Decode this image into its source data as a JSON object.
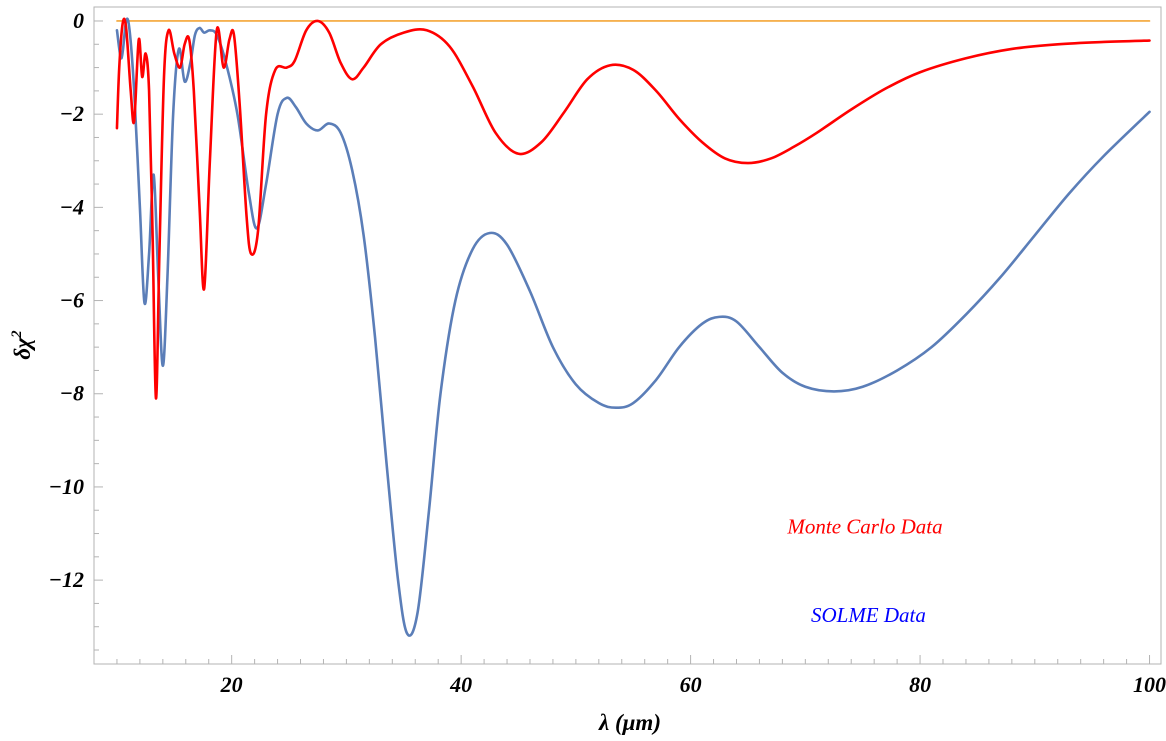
{
  "chart_data": {
    "type": "line",
    "title": "",
    "xlabel": "λ (μm)",
    "ylabel": "δχ²",
    "ylabel_base": "δχ",
    "ylabel_sup": "2",
    "xlim": [
      8,
      101
    ],
    "ylim": [
      -13.8,
      0.3
    ],
    "xticks": [
      20,
      40,
      60,
      80,
      100
    ],
    "yticks": [
      0,
      -2,
      -4,
      -6,
      -8,
      -10,
      -12
    ],
    "xtick_labels": [
      "20",
      "40",
      "60",
      "80",
      "100"
    ],
    "ytick_labels": [
      "0",
      "−2",
      "−4",
      "−6",
      "−8",
      "−10",
      "−12"
    ],
    "grid": false,
    "annotations": [
      {
        "text": "Monte Carlo Data",
        "color": "#ff0000",
        "x": 75.2,
        "y": -11.0
      },
      {
        "text": "SOLME Data",
        "color": "#0000ff",
        "x": 75.5,
        "y": -12.9
      }
    ],
    "series": [
      {
        "color": "#ff0000",
        "points": [
          [
            10,
            -2.3
          ],
          [
            10.2,
            -1.0
          ],
          [
            10.5,
            -0.05
          ],
          [
            10.8,
            -0.15
          ],
          [
            11.2,
            -1.5
          ],
          [
            11.5,
            -2.15
          ],
          [
            11.9,
            -0.4
          ],
          [
            12.2,
            -1.2
          ],
          [
            12.5,
            -0.7
          ],
          [
            12.8,
            -1.5
          ],
          [
            13.1,
            -4.5
          ],
          [
            13.4,
            -8.1
          ],
          [
            13.7,
            -5.0
          ],
          [
            14.1,
            -1.2
          ],
          [
            14.5,
            -0.2
          ],
          [
            15.0,
            -0.7
          ],
          [
            15.5,
            -1.0
          ],
          [
            15.9,
            -0.5
          ],
          [
            16.3,
            -0.4
          ],
          [
            16.7,
            -1.5
          ],
          [
            17.2,
            -4.0
          ],
          [
            17.6,
            -5.75
          ],
          [
            18.1,
            -3.0
          ],
          [
            18.7,
            -0.2
          ],
          [
            19.3,
            -1.0
          ],
          [
            19.8,
            -0.4
          ],
          [
            20.2,
            -0.3
          ],
          [
            20.7,
            -1.8
          ],
          [
            21.3,
            -4.2
          ],
          [
            21.7,
            -5.0
          ],
          [
            22.3,
            -4.5
          ],
          [
            23.0,
            -2.0
          ],
          [
            23.8,
            -1.05
          ],
          [
            24.8,
            -1.0
          ],
          [
            25.5,
            -0.85
          ],
          [
            26.5,
            -0.2
          ],
          [
            27.5,
            0.0
          ],
          [
            28.5,
            -0.25
          ],
          [
            29.5,
            -0.9
          ],
          [
            30.5,
            -1.25
          ],
          [
            31.5,
            -1.0
          ],
          [
            33,
            -0.5
          ],
          [
            35,
            -0.25
          ],
          [
            37,
            -0.2
          ],
          [
            39,
            -0.55
          ],
          [
            41,
            -1.4
          ],
          [
            43,
            -2.4
          ],
          [
            45,
            -2.85
          ],
          [
            47,
            -2.6
          ],
          [
            49,
            -1.95
          ],
          [
            51,
            -1.25
          ],
          [
            53,
            -0.95
          ],
          [
            55,
            -1.05
          ],
          [
            57,
            -1.5
          ],
          [
            59,
            -2.1
          ],
          [
            61,
            -2.6
          ],
          [
            63,
            -2.95
          ],
          [
            65,
            -3.05
          ],
          [
            67,
            -2.95
          ],
          [
            69,
            -2.7
          ],
          [
            71,
            -2.4
          ],
          [
            74,
            -1.9
          ],
          [
            77,
            -1.45
          ],
          [
            80,
            -1.1
          ],
          [
            84,
            -0.8
          ],
          [
            88,
            -0.6
          ],
          [
            92,
            -0.5
          ],
          [
            96,
            -0.45
          ],
          [
            100,
            -0.42
          ]
        ]
      },
      {
        "color": "#5b7eb8",
        "points": [
          [
            10,
            -0.2
          ],
          [
            10.4,
            -0.8
          ],
          [
            10.8,
            0.0
          ],
          [
            11.1,
            -0.2
          ],
          [
            11.5,
            -1.5
          ],
          [
            12.0,
            -4.0
          ],
          [
            12.4,
            -6.05
          ],
          [
            12.8,
            -5.0
          ],
          [
            13.2,
            -3.3
          ],
          [
            13.6,
            -5.5
          ],
          [
            14.0,
            -7.4
          ],
          [
            14.4,
            -5.5
          ],
          [
            14.9,
            -2.0
          ],
          [
            15.4,
            -0.6
          ],
          [
            15.9,
            -1.3
          ],
          [
            16.4,
            -0.9
          ],
          [
            16.8,
            -0.3
          ],
          [
            17.2,
            -0.15
          ],
          [
            17.6,
            -0.25
          ],
          [
            18.1,
            -0.2
          ],
          [
            18.7,
            -0.3
          ],
          [
            19.5,
            -0.9
          ],
          [
            20.5,
            -2.0
          ],
          [
            21.5,
            -3.7
          ],
          [
            22.2,
            -4.45
          ],
          [
            23.0,
            -3.5
          ],
          [
            24.0,
            -2.0
          ],
          [
            24.8,
            -1.65
          ],
          [
            25.6,
            -1.85
          ],
          [
            26.5,
            -2.2
          ],
          [
            27.5,
            -2.35
          ],
          [
            28.5,
            -2.2
          ],
          [
            29.5,
            -2.4
          ],
          [
            30.5,
            -3.2
          ],
          [
            31.5,
            -4.6
          ],
          [
            32.5,
            -6.8
          ],
          [
            33.5,
            -9.5
          ],
          [
            34.5,
            -12.0
          ],
          [
            35.3,
            -13.15
          ],
          [
            36.2,
            -12.7
          ],
          [
            37.2,
            -10.5
          ],
          [
            38.2,
            -8.0
          ],
          [
            39.5,
            -6.0
          ],
          [
            41,
            -4.9
          ],
          [
            42.5,
            -4.55
          ],
          [
            44,
            -4.8
          ],
          [
            46,
            -5.8
          ],
          [
            48,
            -7.0
          ],
          [
            50,
            -7.8
          ],
          [
            52,
            -8.2
          ],
          [
            53.5,
            -8.3
          ],
          [
            55,
            -8.2
          ],
          [
            57,
            -7.7
          ],
          [
            59,
            -7.0
          ],
          [
            61,
            -6.5
          ],
          [
            62.5,
            -6.35
          ],
          [
            64,
            -6.45
          ],
          [
            66,
            -7.0
          ],
          [
            68,
            -7.55
          ],
          [
            70,
            -7.85
          ],
          [
            72.5,
            -7.95
          ],
          [
            75,
            -7.85
          ],
          [
            78,
            -7.5
          ],
          [
            81,
            -7.0
          ],
          [
            84,
            -6.3
          ],
          [
            87,
            -5.5
          ],
          [
            90,
            -4.6
          ],
          [
            93,
            -3.7
          ],
          [
            96,
            -2.9
          ],
          [
            100,
            -1.95
          ]
        ]
      },
      {
        "color": "#f4a536",
        "points": [
          [
            10,
            0
          ],
          [
            100,
            0
          ]
        ]
      }
    ]
  }
}
